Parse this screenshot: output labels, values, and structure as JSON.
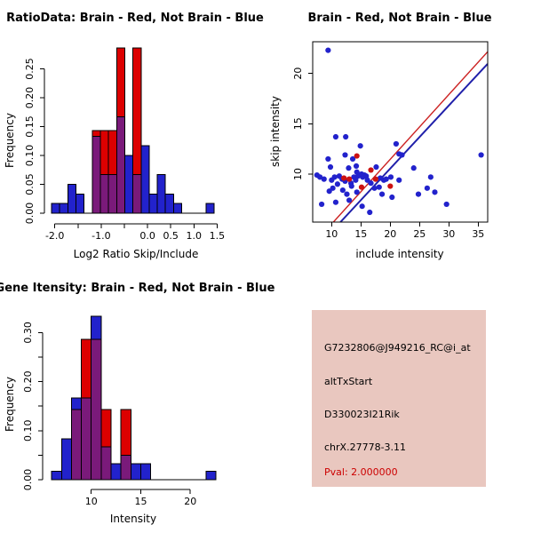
{
  "colors": {
    "hist_red": "#dc0000",
    "hist_blue": "#2222cc",
    "hist_overlap": "#7a1a7a",
    "dot_blue": "#2222cc",
    "dot_red": "#cc1111",
    "fit_line_red": "#cc2222",
    "fit_line_blue": "#2020aa",
    "axis": "#000000",
    "info_bg": "#e9c7bf",
    "pval_red": "#cc0000"
  },
  "panels": {
    "ratio_hist": {
      "title": "RatioData: Brain - Red, Not Brain - Blue",
      "xlabel": "Log2 Ratio Skip/Include",
      "ylabel": "Frequency"
    },
    "scatter": {
      "title": "Brain - Red, Not Brain - Blue",
      "xlabel": "include intensity",
      "ylabel": "skip intensity"
    },
    "gene_hist": {
      "title": "Gene Itensity: Brain - Red, Not Brain - Blue",
      "xlabel": "Intensity",
      "ylabel": "Frequency"
    },
    "info": {
      "probe": "G7232806@J949216_RC@i_at",
      "event": "altTxStart",
      "gene": "D330023I21Rik",
      "locus": "chrX.27778-3.11",
      "pval": "Pval: 2.000000"
    }
  },
  "chart_data": [
    {
      "id": "ratio_hist",
      "type": "bar",
      "variant": "overlaid-histogram",
      "title": "RatioData: Brain - Red, Not Brain - Blue",
      "xlabel": "Log2 Ratio Skip/Include",
      "ylabel": "Frequency",
      "bin_width": 0.175,
      "bin_left_edges": [
        -2.07,
        -1.895,
        -1.72,
        -1.545,
        -1.19,
        -1.015,
        -0.84,
        -0.665,
        -0.49,
        -0.315,
        -0.14,
        0.035,
        0.21,
        0.385,
        0.56,
        1.26
      ],
      "series": [
        {
          "name": "Not Brain",
          "color_key": "hist_blue",
          "heights": [
            0.017,
            0.017,
            0.05,
            0.033,
            0.133,
            0.067,
            0.067,
            0.167,
            0.1,
            0.067,
            0.117,
            0.033,
            0.067,
            0.033,
            0.017,
            0.017
          ]
        },
        {
          "name": "Brain",
          "color_key": "hist_red",
          "heights": [
            0,
            0,
            0,
            0,
            0.143,
            0.143,
            0.143,
            0.286,
            0,
            0.286,
            0,
            0,
            0,
            0,
            0,
            0
          ]
        }
      ],
      "baseline_extent": [
        -2.07,
        1.435
      ],
      "xticks": {
        "values": [
          -2,
          -1.5,
          -1,
          -0.5,
          0,
          0.5,
          1,
          1.5
        ],
        "labels": [
          "-2.0",
          "",
          "-1.0",
          "",
          "0.0",
          "0.5",
          "1.0",
          "1.5"
        ]
      },
      "yticks": {
        "values": [
          0,
          0.05,
          0.1,
          0.15,
          0.2,
          0.25
        ],
        "labels": [
          "0.00",
          "0.05",
          "0.10",
          "0.15",
          "0.20",
          "0.25"
        ]
      },
      "xlim": [
        -2.22,
        1.57
      ],
      "ylim": [
        0,
        0.297
      ],
      "grid": false
    },
    {
      "id": "intensity_scatter",
      "type": "scatter",
      "title": "Brain - Red, Not Brain - Blue",
      "xlabel": "include intensity",
      "ylabel": "skip intensity",
      "series": [
        {
          "name": "Not Brain",
          "color_key": "dot_blue",
          "points": [
            [
              9.4,
              22.3
            ],
            [
              10.7,
              13.7
            ],
            [
              12.4,
              13.7
            ],
            [
              14.9,
              12.8
            ],
            [
              21.0,
              13.0
            ],
            [
              21.5,
              12.0
            ],
            [
              22.0,
              11.9
            ],
            [
              35.5,
              11.9
            ],
            [
              12.3,
              11.9
            ],
            [
              9.4,
              11.5
            ],
            [
              13.6,
              11.5
            ],
            [
              9.8,
              10.7
            ],
            [
              24.0,
              10.6
            ],
            [
              14.2,
              10.8
            ],
            [
              17.6,
              10.7
            ],
            [
              7.5,
              9.9
            ],
            [
              8.0,
              9.7
            ],
            [
              8.7,
              9.5
            ],
            [
              10.0,
              9.4
            ],
            [
              10.5,
              9.7
            ],
            [
              11.3,
              9.8
            ],
            [
              11.8,
              9.5
            ],
            [
              12.3,
              9.3
            ],
            [
              11.0,
              9.0
            ],
            [
              10.2,
              8.6
            ],
            [
              9.6,
              8.3
            ],
            [
              11.9,
              8.4
            ],
            [
              12.6,
              8.0
            ],
            [
              8.3,
              7.0
            ],
            [
              10.7,
              7.2
            ],
            [
              13.8,
              9.7
            ],
            [
              14.1,
              9.4
            ],
            [
              13.3,
              9.1
            ],
            [
              13.4,
              8.8
            ],
            [
              14.5,
              9.8
            ],
            [
              15.1,
              10.0
            ],
            [
              14.3,
              10.2
            ],
            [
              15.3,
              9.7
            ],
            [
              15.9,
              9.8
            ],
            [
              16.1,
              9.4
            ],
            [
              16.7,
              9.1
            ],
            [
              17.3,
              8.6
            ],
            [
              18.1,
              8.7
            ],
            [
              14.3,
              8.2
            ],
            [
              18.6,
              8.0
            ],
            [
              18.9,
              9.4
            ],
            [
              19.3,
              9.5
            ],
            [
              20.1,
              9.7
            ],
            [
              18.3,
              9.6
            ],
            [
              12.9,
              10.6
            ],
            [
              15.6,
              9.9
            ],
            [
              13.0,
              7.4
            ],
            [
              15.2,
              6.8
            ],
            [
              16.5,
              6.2
            ],
            [
              20.3,
              7.7
            ],
            [
              21.5,
              9.4
            ],
            [
              24.8,
              8.0
            ],
            [
              26.3,
              8.6
            ],
            [
              26.9,
              9.7
            ],
            [
              27.6,
              8.2
            ],
            [
              29.6,
              7.0
            ]
          ]
        },
        {
          "name": "Brain",
          "color_key": "dot_red",
          "points": [
            [
              14.3,
              11.8
            ],
            [
              16.7,
              10.4
            ],
            [
              12.1,
              9.6
            ],
            [
              17.5,
              9.5
            ],
            [
              15.1,
              8.7
            ],
            [
              20.0,
              8.8
            ],
            [
              13.0,
              9.5
            ]
          ]
        }
      ],
      "lines": [
        {
          "name": "brain-fit",
          "color_key": "fit_line_red",
          "x1": 10.3,
          "y1": 5.23,
          "x2": 36.6,
          "y2": 22.15,
          "width": 1.4
        },
        {
          "name": "notbrain-fit",
          "color_key": "fit_line_blue",
          "x1": 11.5,
          "y1": 5.23,
          "x2": 36.6,
          "y2": 20.95,
          "width": 2
        }
      ],
      "xticks": {
        "values": [
          10,
          15,
          20,
          25,
          30,
          35
        ],
        "labels": [
          "10",
          "15",
          "20",
          "25",
          "30",
          "35"
        ]
      },
      "yticks": {
        "values": [
          10,
          15,
          20
        ],
        "labels": [
          "10",
          "15",
          "20"
        ]
      },
      "xlim": [
        6.77,
        36.6
      ],
      "ylim": [
        5.23,
        23.15
      ],
      "grid": false
    },
    {
      "id": "gene_hist",
      "type": "bar",
      "variant": "overlaid-histogram",
      "title": "Gene Itensity: Brain - Red, Not Brain - Blue",
      "xlabel": "Intensity",
      "ylabel": "Frequency",
      "bin_width": 1,
      "bin_left_edges": [
        6,
        7,
        8,
        9,
        10,
        11,
        12,
        13,
        14,
        15,
        21.6
      ],
      "series": [
        {
          "name": "Not Brain",
          "color_key": "hist_blue",
          "heights": [
            0.017,
            0.083,
            0.167,
            0.167,
            0.333,
            0.067,
            0.033,
            0.05,
            0.033,
            0.033,
            0.017
          ]
        },
        {
          "name": "Brain",
          "color_key": "hist_red",
          "heights": [
            0,
            0,
            0.143,
            0.286,
            0.286,
            0.143,
            0,
            0.143,
            0,
            0,
            0
          ]
        }
      ],
      "baseline_extent": [
        6,
        22.6
      ],
      "xticks": {
        "values": [
          10,
          15,
          20
        ],
        "labels": [
          "10",
          "15",
          "20"
        ]
      },
      "yticks": {
        "values": [
          0,
          0.05,
          0.1,
          0.15,
          0.2,
          0.25,
          0.3
        ],
        "labels": [
          "0.00",
          "",
          "0.10",
          "",
          "0.20",
          "",
          "0.30"
        ]
      },
      "xlim": [
        5.09,
        23.0
      ],
      "ylim": [
        0,
        0.35
      ],
      "grid": false
    }
  ]
}
